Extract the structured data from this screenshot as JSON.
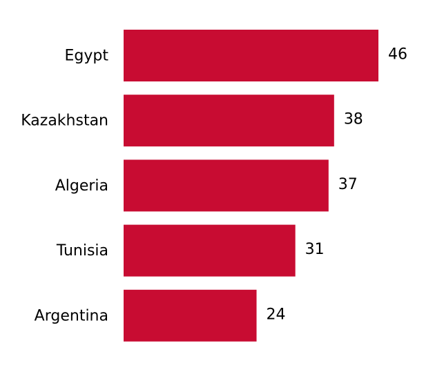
{
  "chart_data": {
    "type": "hbar",
    "categories": [
      "Egypt",
      "Kazakhstan",
      "Algeria",
      "Tunisia",
      "Argentina"
    ],
    "values": [
      46,
      38,
      37,
      31,
      24
    ],
    "color": "#c80c32"
  }
}
